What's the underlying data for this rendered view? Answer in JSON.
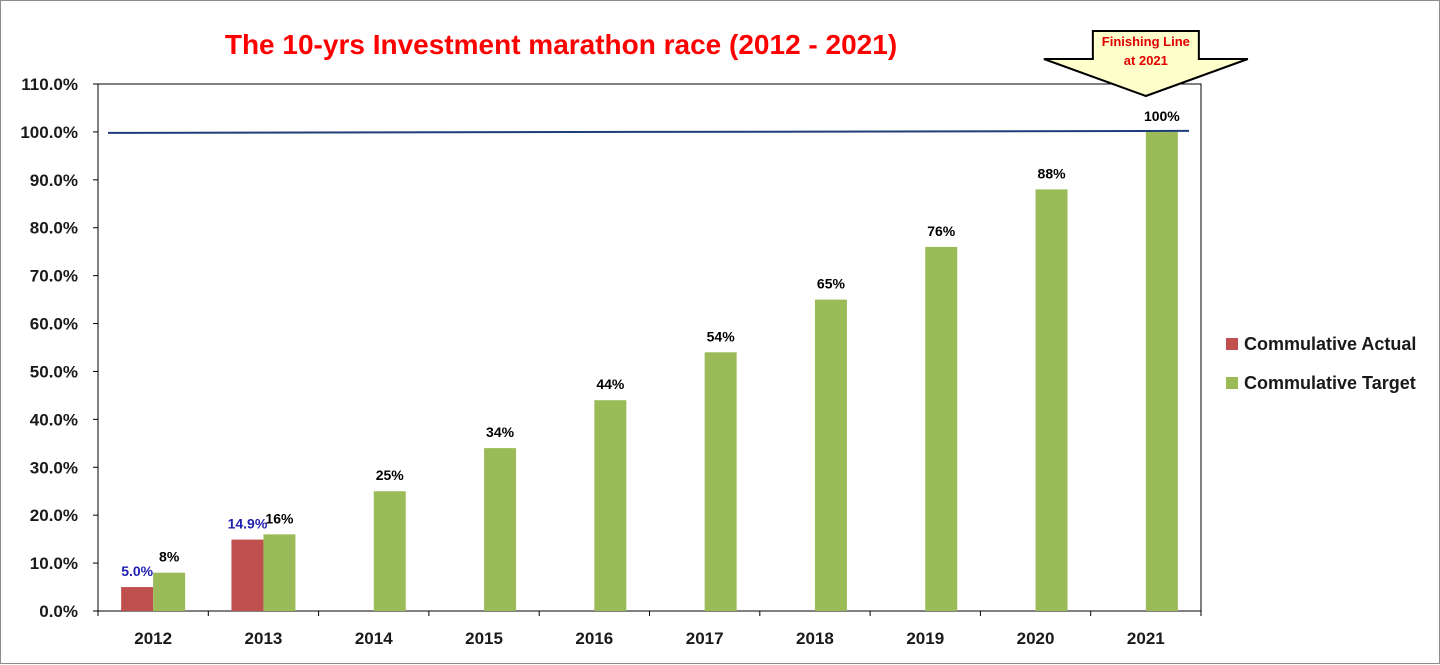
{
  "chart_data": {
    "type": "bar",
    "title": "The 10-yrs Investment marathon race (2012 - 2021)",
    "categories": [
      "2012",
      "2013",
      "2014",
      "2015",
      "2016",
      "2017",
      "2018",
      "2019",
      "2020",
      "2021"
    ],
    "series": [
      {
        "name": "Commulative Actual",
        "color": "#c0504d",
        "label_color": "#1f1fb0",
        "values": [
          5.0,
          14.9,
          null,
          null,
          null,
          null,
          null,
          null,
          null,
          null
        ],
        "labels": [
          "5.0%",
          "14.9%",
          "",
          "",
          "",
          "",
          "",
          "",
          "",
          ""
        ]
      },
      {
        "name": "Commulative Target",
        "color": "#9bbb59",
        "label_color": "#000000",
        "values": [
          8,
          16,
          25,
          34,
          44,
          54,
          65,
          76,
          88,
          100
        ],
        "labels": [
          "8%",
          "16%",
          "25%",
          "34%",
          "44%",
          "54%",
          "65%",
          "76%",
          "88%",
          "100%"
        ]
      }
    ],
    "ylim": [
      0,
      110
    ],
    "yticks": [
      0,
      10,
      20,
      30,
      40,
      50,
      60,
      70,
      80,
      90,
      100,
      110
    ],
    "ytick_labels": [
      "0.0%",
      "10.0%",
      "20.0%",
      "30.0%",
      "40.0%",
      "50.0%",
      "60.0%",
      "70.0%",
      "80.0%",
      "90.0%",
      "100.0%",
      "110.0%"
    ],
    "target_line": {
      "value": 100,
      "color": "#1f3d7a",
      "glow_color": "#ff9c9c"
    },
    "annotation": {
      "lines": [
        "Finishing Line",
        "at 2021"
      ],
      "category": "2021",
      "fill": "#ffffcc"
    },
    "legend_position": "right"
  }
}
